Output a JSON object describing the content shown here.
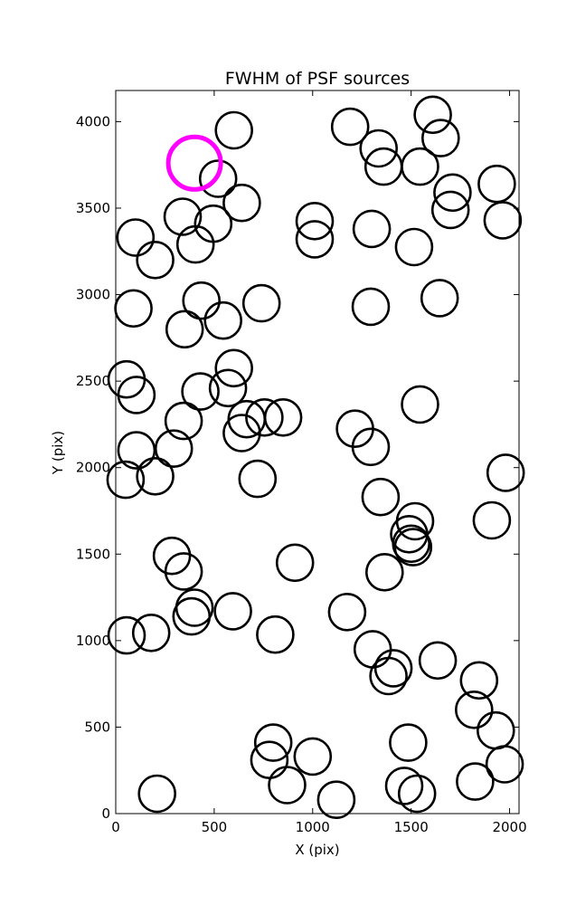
{
  "chart_data": {
    "type": "scatter",
    "title": "FWHM of PSF sources",
    "xlabel": "X (pix)",
    "ylabel": "Y (pix)",
    "xlim": [
      0,
      2048
    ],
    "ylim": [
      0,
      4180
    ],
    "xticks": [
      0,
      500,
      1000,
      1500,
      2000
    ],
    "yticks": [
      0,
      500,
      1000,
      1500,
      2000,
      2500,
      3000,
      3500,
      4000
    ],
    "grid": false,
    "legend": "none",
    "marker": "open-circle",
    "series": [
      {
        "color": "#000000",
        "points": [
          {
            "x": 600,
            "y": 3950
          },
          {
            "x": 1190,
            "y": 3970
          },
          {
            "x": 1610,
            "y": 4040
          },
          {
            "x": 1335,
            "y": 3845
          },
          {
            "x": 1360,
            "y": 3740
          },
          {
            "x": 1545,
            "y": 3740
          },
          {
            "x": 1650,
            "y": 3905
          },
          {
            "x": 1710,
            "y": 3590
          },
          {
            "x": 1700,
            "y": 3490
          },
          {
            "x": 1935,
            "y": 3640
          },
          {
            "x": 1965,
            "y": 3430
          },
          {
            "x": 520,
            "y": 3670
          },
          {
            "x": 640,
            "y": 3530
          },
          {
            "x": 340,
            "y": 3450
          },
          {
            "x": 495,
            "y": 3410
          },
          {
            "x": 405,
            "y": 3290
          },
          {
            "x": 100,
            "y": 3330
          },
          {
            "x": 200,
            "y": 3200
          },
          {
            "x": 1010,
            "y": 3425
          },
          {
            "x": 1010,
            "y": 3320
          },
          {
            "x": 1300,
            "y": 3380
          },
          {
            "x": 1515,
            "y": 3275
          },
          {
            "x": 90,
            "y": 2920
          },
          {
            "x": 435,
            "y": 2965
          },
          {
            "x": 350,
            "y": 2800
          },
          {
            "x": 545,
            "y": 2850
          },
          {
            "x": 740,
            "y": 2950
          },
          {
            "x": 1295,
            "y": 2930
          },
          {
            "x": 1645,
            "y": 2980
          },
          {
            "x": 55,
            "y": 2510
          },
          {
            "x": 105,
            "y": 2420
          },
          {
            "x": 600,
            "y": 2575
          },
          {
            "x": 570,
            "y": 2460
          },
          {
            "x": 430,
            "y": 2440
          },
          {
            "x": 1545,
            "y": 2365
          },
          {
            "x": 345,
            "y": 2270
          },
          {
            "x": 665,
            "y": 2280
          },
          {
            "x": 755,
            "y": 2290
          },
          {
            "x": 850,
            "y": 2290
          },
          {
            "x": 640,
            "y": 2200
          },
          {
            "x": 1215,
            "y": 2225
          },
          {
            "x": 1295,
            "y": 2120
          },
          {
            "x": 105,
            "y": 2100
          },
          {
            "x": 295,
            "y": 2110
          },
          {
            "x": 50,
            "y": 1930
          },
          {
            "x": 200,
            "y": 1950
          },
          {
            "x": 720,
            "y": 1935
          },
          {
            "x": 1345,
            "y": 1830
          },
          {
            "x": 1520,
            "y": 1690
          },
          {
            "x": 1490,
            "y": 1615
          },
          {
            "x": 1500,
            "y": 1560
          },
          {
            "x": 1510,
            "y": 1540
          },
          {
            "x": 1910,
            "y": 1695
          },
          {
            "x": 1980,
            "y": 1970
          },
          {
            "x": 285,
            "y": 1490
          },
          {
            "x": 345,
            "y": 1400
          },
          {
            "x": 910,
            "y": 1450
          },
          {
            "x": 1365,
            "y": 1395
          },
          {
            "x": 400,
            "y": 1190
          },
          {
            "x": 385,
            "y": 1140
          },
          {
            "x": 595,
            "y": 1170
          },
          {
            "x": 1175,
            "y": 1165
          },
          {
            "x": 55,
            "y": 1030
          },
          {
            "x": 180,
            "y": 1045
          },
          {
            "x": 810,
            "y": 1035
          },
          {
            "x": 1305,
            "y": 950
          },
          {
            "x": 1410,
            "y": 840
          },
          {
            "x": 1385,
            "y": 795
          },
          {
            "x": 1635,
            "y": 885
          },
          {
            "x": 1845,
            "y": 770
          },
          {
            "x": 1820,
            "y": 600
          },
          {
            "x": 1930,
            "y": 480
          },
          {
            "x": 1975,
            "y": 285
          },
          {
            "x": 1825,
            "y": 185
          },
          {
            "x": 800,
            "y": 410
          },
          {
            "x": 780,
            "y": 310
          },
          {
            "x": 1000,
            "y": 330
          },
          {
            "x": 870,
            "y": 165
          },
          {
            "x": 1120,
            "y": 80
          },
          {
            "x": 1485,
            "y": 410
          },
          {
            "x": 1465,
            "y": 160
          },
          {
            "x": 1530,
            "y": 115
          },
          {
            "x": 210,
            "y": 115
          }
        ]
      },
      {
        "color": "#ff00ff",
        "points": [
          {
            "x": 400,
            "y": 3760
          }
        ]
      }
    ]
  }
}
